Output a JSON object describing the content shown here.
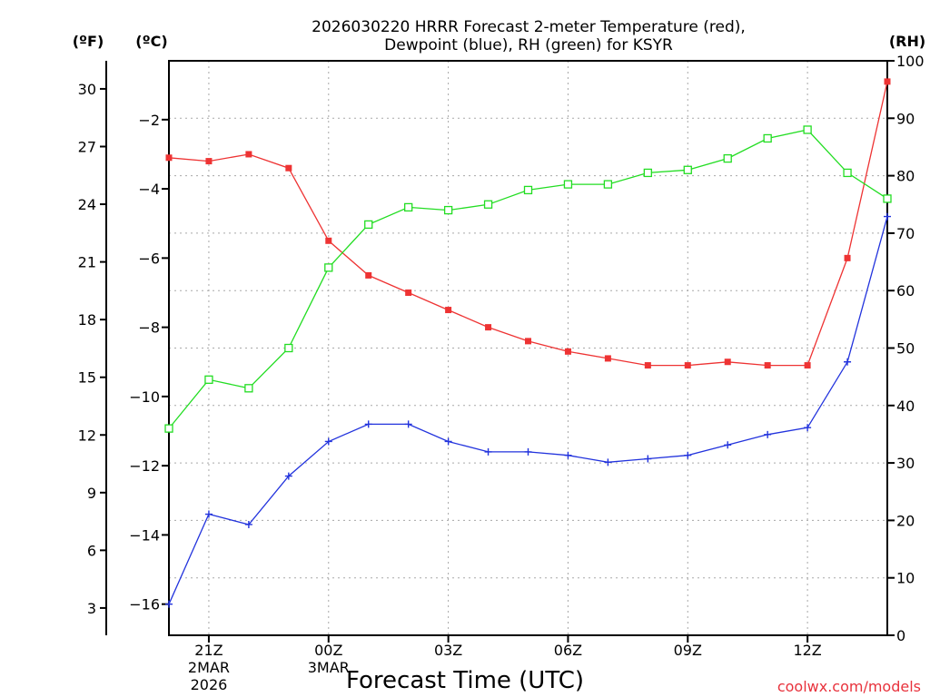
{
  "chart_data": {
    "type": "line",
    "title_line1": "2026030220 HRRR Forecast 2-meter Temperature (red),",
    "title_line2": "Dewpoint (blue), RH (green) for KSYR",
    "xlabel": "Forecast Time (UTC)",
    "credit": "coolwx.com/models",
    "units": {
      "fahrenheit": "(ºF)",
      "celsius": "(ºC)",
      "rh": "(RH)"
    },
    "x_hours_from_20Z": [
      0,
      1,
      2,
      3,
      4,
      5,
      6,
      7,
      8,
      9,
      10,
      11,
      12,
      13,
      14,
      15,
      16,
      17,
      18
    ],
    "x_ticks": [
      {
        "hour": 1,
        "label": "21Z",
        "sub1": "2MAR",
        "sub2": "2026"
      },
      {
        "hour": 4,
        "label": "00Z",
        "sub1": "3MAR",
        "sub2": ""
      },
      {
        "hour": 7,
        "label": "03Z",
        "sub1": "",
        "sub2": ""
      },
      {
        "hour": 10,
        "label": "06Z",
        "sub1": "",
        "sub2": ""
      },
      {
        "hour": 13,
        "label": "09Z",
        "sub1": "",
        "sub2": ""
      },
      {
        "hour": 16,
        "label": "12Z",
        "sub1": "",
        "sub2": ""
      }
    ],
    "xlim": [
      0,
      18
    ],
    "celsius_axis": {
      "lim": [
        -16.9,
        -0.3
      ],
      "ticks": [
        -2,
        -4,
        -6,
        -8,
        -10,
        -12,
        -14,
        -16
      ]
    },
    "fahrenheit_axis": {
      "ticks": [
        30,
        27,
        24,
        21,
        18,
        15,
        12,
        9,
        6,
        3
      ]
    },
    "rh_axis": {
      "lim": [
        0,
        100
      ],
      "ticks": [
        100,
        90,
        80,
        70,
        60,
        50,
        40,
        30,
        20,
        10,
        0
      ]
    },
    "colors": {
      "temperature": "#ee3333",
      "dewpoint": "#2233dd",
      "rh": "#22dd22"
    },
    "series": [
      {
        "name": "Temperature",
        "unit": "C",
        "marker": "filled-square",
        "values": [
          -3.1,
          -3.2,
          -3.0,
          -3.4,
          -5.5,
          -6.5,
          -7.0,
          -7.5,
          -8.0,
          -8.4,
          -8.7,
          -8.9,
          -9.1,
          -9.1,
          -9.0,
          -9.1,
          -9.1,
          -6.0,
          -0.9
        ]
      },
      {
        "name": "Dewpoint",
        "unit": "C",
        "marker": "plus",
        "values": [
          -16.0,
          -13.4,
          -13.7,
          -12.3,
          -11.3,
          -10.8,
          -10.8,
          -11.3,
          -11.6,
          -11.6,
          -11.7,
          -11.9,
          -11.8,
          -11.7,
          -11.4,
          -11.1,
          -10.9,
          -9.0,
          -4.8
        ]
      },
      {
        "name": "RH",
        "unit": "%",
        "marker": "open-square",
        "values": [
          36,
          44.5,
          43,
          50,
          64,
          71.5,
          74.5,
          74,
          75,
          77.5,
          78.5,
          78.5,
          80.5,
          81,
          83,
          86.5,
          88,
          80.5,
          76
        ]
      }
    ]
  }
}
